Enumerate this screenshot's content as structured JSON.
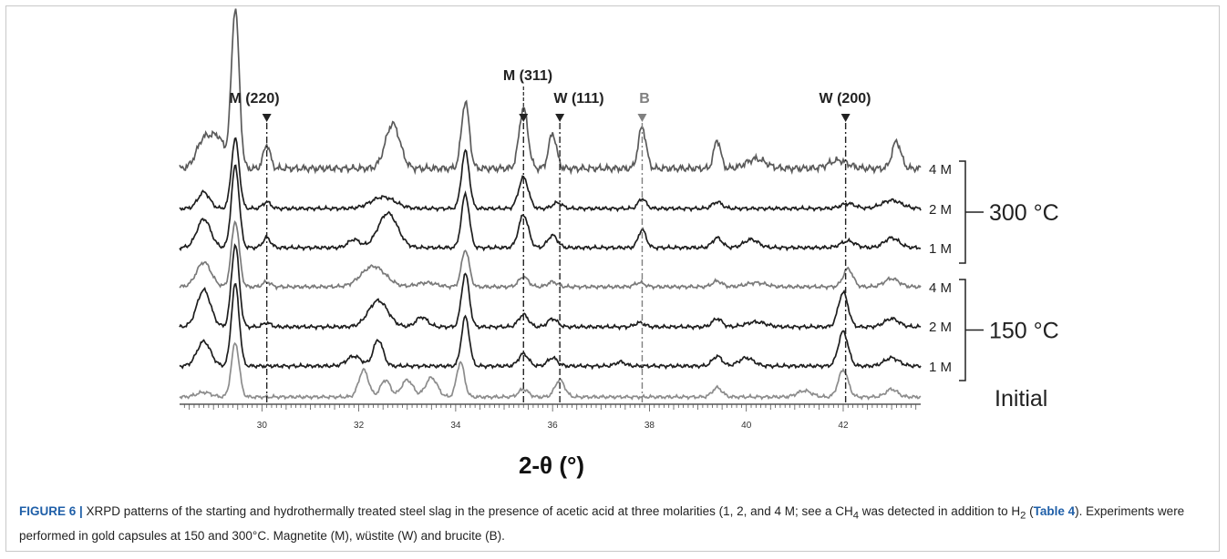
{
  "chart_data": {
    "type": "line",
    "xlabel": "2-θ (°)",
    "xlim": [
      28.3,
      43.6
    ],
    "x_ticks": [
      "30",
      "32",
      "34",
      "36",
      "38",
      "40",
      "42"
    ],
    "series": [
      {
        "label": "4 M",
        "group": "300 °C",
        "color": "#5a5a5a",
        "peaks": [
          [
            28.8,
            0.18,
            0.15
          ],
          [
            29.1,
            0.18,
            0.14
          ],
          [
            29.45,
            1.0,
            0.08
          ],
          [
            30.1,
            0.15,
            0.07
          ],
          [
            32.7,
            0.28,
            0.15
          ],
          [
            34.2,
            0.42,
            0.08
          ],
          [
            35.4,
            0.38,
            0.09
          ],
          [
            36.0,
            0.22,
            0.08
          ],
          [
            37.85,
            0.26,
            0.08
          ],
          [
            39.4,
            0.18,
            0.07
          ],
          [
            40.2,
            0.06,
            0.2
          ],
          [
            41.9,
            0.05,
            0.2
          ],
          [
            43.1,
            0.17,
            0.09
          ]
        ]
      },
      {
        "label": "2 M",
        "group": "300 °C",
        "color": "#1e1e1e",
        "peaks": [
          [
            28.8,
            0.2,
            0.12
          ],
          [
            29.45,
            0.85,
            0.08
          ],
          [
            30.1,
            0.08,
            0.08
          ],
          [
            32.5,
            0.14,
            0.25
          ],
          [
            34.2,
            0.7,
            0.08
          ],
          [
            35.4,
            0.38,
            0.1
          ],
          [
            36.1,
            0.07,
            0.1
          ],
          [
            37.85,
            0.12,
            0.08
          ],
          [
            39.4,
            0.08,
            0.1
          ],
          [
            42.1,
            0.06,
            0.15
          ],
          [
            43.0,
            0.1,
            0.2
          ]
        ]
      },
      {
        "label": "1 M",
        "group": "300 °C",
        "color": "#1e1e1e",
        "peaks": [
          [
            28.8,
            0.35,
            0.14
          ],
          [
            29.45,
            1.0,
            0.08
          ],
          [
            30.1,
            0.12,
            0.08
          ],
          [
            32.6,
            0.42,
            0.2
          ],
          [
            31.9,
            0.1,
            0.12
          ],
          [
            34.2,
            0.65,
            0.08
          ],
          [
            35.4,
            0.4,
            0.1
          ],
          [
            36.0,
            0.15,
            0.1
          ],
          [
            37.85,
            0.22,
            0.08
          ],
          [
            39.4,
            0.12,
            0.1
          ],
          [
            40.1,
            0.1,
            0.15
          ],
          [
            42.1,
            0.08,
            0.15
          ],
          [
            43.0,
            0.12,
            0.15
          ]
        ]
      },
      {
        "label": "4 M",
        "group": "150 °C",
        "color": "#7a7a7a",
        "peaks": [
          [
            28.8,
            0.3,
            0.15
          ],
          [
            29.45,
            0.8,
            0.08
          ],
          [
            30.1,
            0.06,
            0.08
          ],
          [
            32.3,
            0.25,
            0.25
          ],
          [
            33.4,
            0.05,
            0.2
          ],
          [
            34.2,
            0.45,
            0.08
          ],
          [
            35.4,
            0.12,
            0.1
          ],
          [
            36.0,
            0.06,
            0.1
          ],
          [
            37.8,
            0.05,
            0.1
          ],
          [
            39.4,
            0.07,
            0.1
          ],
          [
            40.2,
            0.05,
            0.2
          ],
          [
            42.1,
            0.22,
            0.1
          ],
          [
            43.0,
            0.1,
            0.15
          ]
        ]
      },
      {
        "label": "2 M",
        "group": "150 °C",
        "color": "#1e1e1e",
        "peaks": [
          [
            28.8,
            0.45,
            0.14
          ],
          [
            29.45,
            1.0,
            0.08
          ],
          [
            30.1,
            0.05,
            0.08
          ],
          [
            32.4,
            0.32,
            0.2
          ],
          [
            33.3,
            0.12,
            0.12
          ],
          [
            34.2,
            0.65,
            0.08
          ],
          [
            35.4,
            0.15,
            0.1
          ],
          [
            36.0,
            0.1,
            0.1
          ],
          [
            37.8,
            0.05,
            0.1
          ],
          [
            39.4,
            0.1,
            0.1
          ],
          [
            40.2,
            0.06,
            0.2
          ],
          [
            42.0,
            0.42,
            0.1
          ],
          [
            43.0,
            0.1,
            0.15
          ]
        ]
      },
      {
        "label": "1 M",
        "group": "150 °C",
        "color": "#1e1e1e",
        "peaks": [
          [
            28.8,
            0.3,
            0.14
          ],
          [
            29.45,
            1.0,
            0.08
          ],
          [
            32.4,
            0.32,
            0.1
          ],
          [
            31.9,
            0.12,
            0.15
          ],
          [
            34.2,
            0.6,
            0.08
          ],
          [
            35.4,
            0.15,
            0.1
          ],
          [
            36.0,
            0.1,
            0.1
          ],
          [
            37.4,
            0.05,
            0.1
          ],
          [
            39.4,
            0.12,
            0.1
          ],
          [
            40.0,
            0.1,
            0.15
          ],
          [
            42.0,
            0.42,
            0.1
          ],
          [
            43.0,
            0.1,
            0.15
          ]
        ]
      },
      {
        "label": "Initial",
        "group": "",
        "color": "#8c8c8c",
        "peaks": [
          [
            28.8,
            0.06,
            0.15
          ],
          [
            29.45,
            0.7,
            0.08
          ],
          [
            32.1,
            0.35,
            0.1
          ],
          [
            32.55,
            0.22,
            0.1
          ],
          [
            33.0,
            0.22,
            0.12
          ],
          [
            33.5,
            0.25,
            0.12
          ],
          [
            34.1,
            0.45,
            0.08
          ],
          [
            35.4,
            0.1,
            0.1
          ],
          [
            36.15,
            0.22,
            0.1
          ],
          [
            39.4,
            0.12,
            0.1
          ],
          [
            41.2,
            0.08,
            0.15
          ],
          [
            42.0,
            0.35,
            0.1
          ],
          [
            43.0,
            0.1,
            0.12
          ]
        ]
      }
    ],
    "markers": [
      {
        "label": "M (220)",
        "x": 30.1,
        "style": "black"
      },
      {
        "label": "M (311)",
        "x": 35.4,
        "style": "black"
      },
      {
        "label": "W (111)",
        "x": 36.15,
        "style": "black"
      },
      {
        "label": "B",
        "x": 37.85,
        "style": "gray"
      },
      {
        "label": "W (200)",
        "x": 42.05,
        "style": "black"
      }
    ],
    "group_labels": [
      "300 °C",
      "150 °C"
    ]
  },
  "caption": {
    "figure_label": "FIGURE 6 |",
    "text1": " XRPD patterns of the starting and hydrothermally treated steel slag in the presence of acetic acid at three molarities (1, 2, and 4 M; see a CH",
    "sub1": "4",
    "text2": " was detected in addition to H",
    "sub2": "2",
    "text3": " (",
    "table_ref": "Table 4",
    "text4": "). Experiments were performed in gold capsules at 150 and 300°C. Magnetite (M), wüstite (W) and brucite (B)."
  }
}
